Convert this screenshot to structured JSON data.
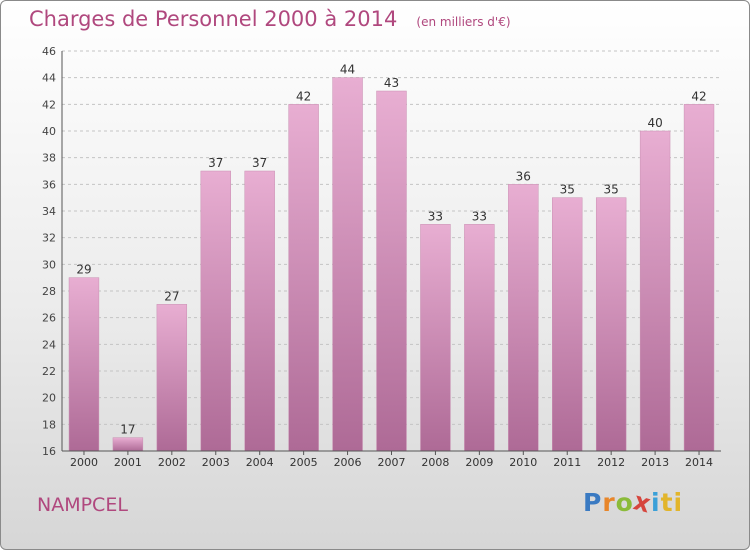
{
  "header": {
    "title": "Charges de Personnel 2000 à 2014",
    "subtitle": "(en milliers d'€)"
  },
  "commune": "NAMPCEL",
  "logo": {
    "letters": [
      "P",
      "r",
      "o",
      "x",
      "i",
      "t",
      "i"
    ]
  },
  "colors": {
    "bar_top": "#e8aed2",
    "bar_bottom": "#ae6a96",
    "title": "#b0487e"
  },
  "chart_data": {
    "type": "bar",
    "categories": [
      "2000",
      "2001",
      "2002",
      "2003",
      "2004",
      "2005",
      "2006",
      "2007",
      "2008",
      "2009",
      "2010",
      "2011",
      "2012",
      "2013",
      "2014"
    ],
    "values": [
      29,
      17,
      27,
      37,
      37,
      42,
      44,
      43,
      33,
      33,
      36,
      35,
      35,
      40,
      42
    ],
    "title": "Charges de Personnel 2000 à 2014",
    "ylim": [
      16,
      46
    ],
    "yticks": [
      16,
      18,
      20,
      22,
      24,
      26,
      28,
      30,
      32,
      34,
      36,
      38,
      40,
      42,
      44,
      46
    ],
    "grid": true,
    "data_labels": true
  }
}
